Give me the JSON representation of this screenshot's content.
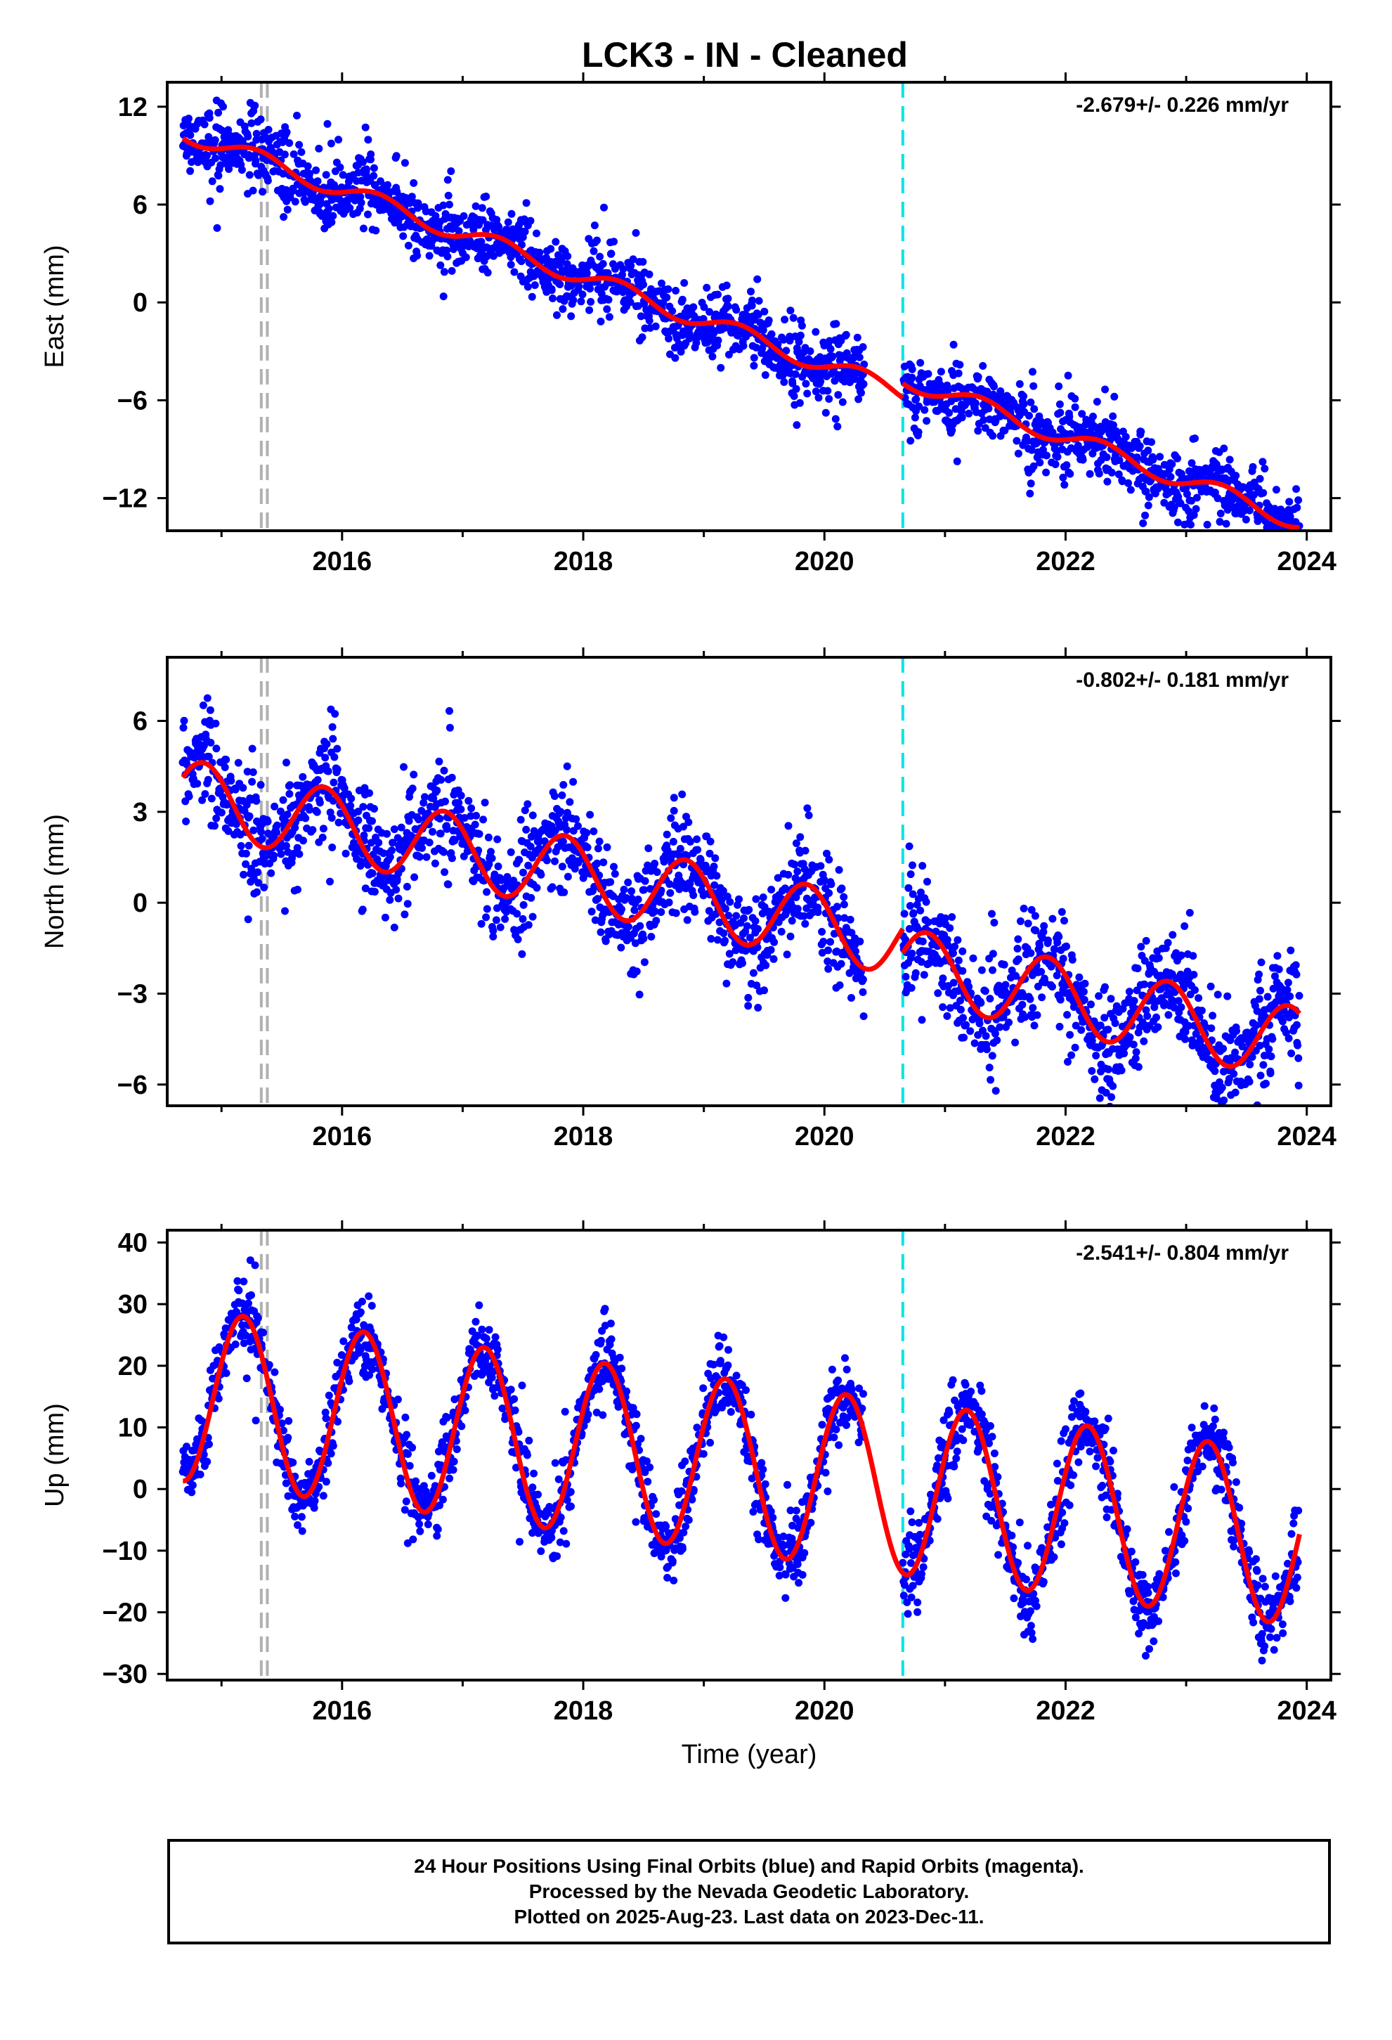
{
  "title": "LCK3  - IN - Cleaned",
  "xlabel": "Time (year)",
  "footer": {
    "line1": "24 Hour Positions Using Final Orbits (blue) and Rapid Orbits (magenta).",
    "line2": "Processed by the Nevada Geodetic Laboratory.",
    "line3": "Plotted on 2025-Aug-23. Last data on 2023-Dec-11."
  },
  "colors": {
    "points": "#0000ff",
    "model": "#ff0000",
    "cyan_line": "#00e5e5",
    "gray_line": "#b0b0b0"
  },
  "chart_data": [
    {
      "type": "scatter",
      "component": "east",
      "ylabel": "East (mm)",
      "rate_label": "-2.679+/- 0.226 mm/yr",
      "xlim": [
        2014.55,
        2024.2
      ],
      "ylim": [
        -14,
        13.5
      ],
      "xticks": [
        2016,
        2018,
        2020,
        2022,
        2024
      ],
      "yticks": [
        -12,
        -6,
        0,
        6,
        12
      ],
      "vlines": {
        "gray": [
          2015.33,
          2015.38
        ],
        "cyan": [
          2020.65
        ]
      },
      "model": {
        "offset": 9.6,
        "rate": -2.679,
        "ref_year": 2015.0,
        "annual_amp": 0.55,
        "annual_phase": 0.3,
        "step_at": 2020.65,
        "step": 0.9
      },
      "scatter": 1.1,
      "data_gap": [
        2020.33,
        2020.65
      ],
      "sample_count": 2500
    },
    {
      "type": "scatter",
      "component": "north",
      "ylabel": "North (mm)",
      "rate_label": "-0.802+/- 0.181 mm/yr",
      "xlim": [
        2014.55,
        2024.2
      ],
      "ylim": [
        -6.7,
        8.1
      ],
      "xticks": [
        2016,
        2018,
        2020,
        2022,
        2024
      ],
      "yticks": [
        -6,
        -3,
        0,
        3,
        6
      ],
      "vlines": {
        "gray": [
          2015.33,
          2015.38
        ],
        "cyan": [
          2020.65
        ]
      },
      "model": {
        "offset": 3.3,
        "rate": -0.802,
        "ref_year": 2015.0,
        "annual_amp": 1.2,
        "annual_phase": 0.85,
        "step_at": 2020.65,
        "step": -0.8
      },
      "scatter": 0.9,
      "data_gap": [
        2020.33,
        2020.65
      ],
      "sample_count": 2500
    },
    {
      "type": "scatter",
      "component": "up",
      "ylabel": "Up (mm)",
      "rate_label": "-2.541+/- 0.804 mm/yr",
      "xlim": [
        2014.55,
        2024.2
      ],
      "ylim": [
        -31,
        42
      ],
      "xticks": [
        2016,
        2018,
        2020,
        2022,
        2024
      ],
      "yticks": [
        -30,
        -20,
        -10,
        0,
        10,
        20,
        30,
        40
      ],
      "vlines": {
        "gray": [
          2015.33,
          2015.38
        ],
        "cyan": [
          2020.65
        ]
      },
      "model": {
        "offset": 14.5,
        "rate": -2.541,
        "ref_year": 2015.0,
        "annual_amp": 14.0,
        "annual_phase": 0.18,
        "step_at": 2020.65,
        "step": 0.0
      },
      "scatter": 3.2,
      "data_gap": [
        2020.33,
        2020.65
      ],
      "sample_count": 2500
    }
  ]
}
